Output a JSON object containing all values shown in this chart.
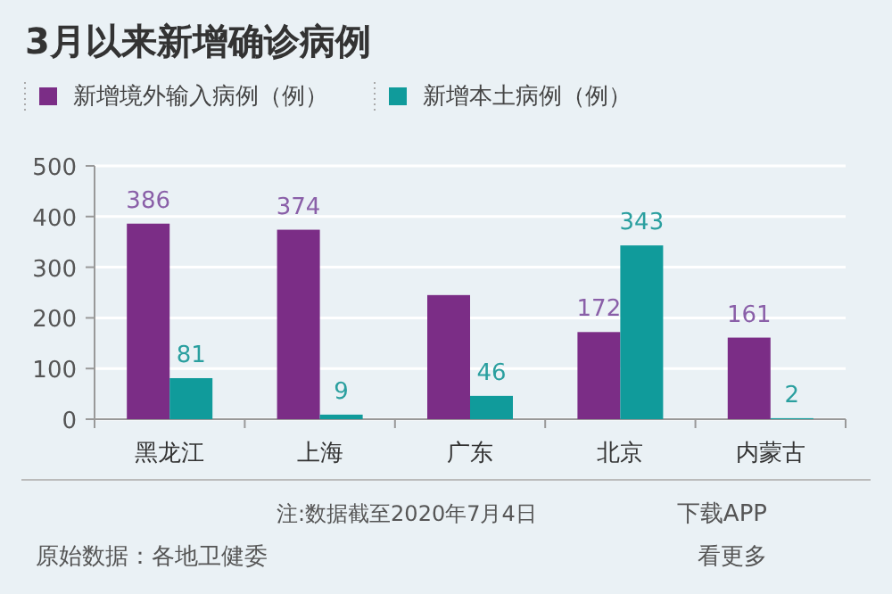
{
  "chart_data": {
    "type": "bar",
    "title": "3月以来新增确诊病例",
    "categories": [
      "黑龙江",
      "上海",
      "广东",
      "北京",
      "内蒙古"
    ],
    "series": [
      {
        "name": "新增境外输入病例（例）",
        "color": "#7b2d86",
        "values": [
          386,
          374,
          245,
          172,
          161
        ],
        "value_labels": [
          "386",
          "374",
          null,
          "172",
          "161"
        ]
      },
      {
        "name": "新增本土病例（例）",
        "color": "#109b9b",
        "values": [
          81,
          9,
          46,
          343,
          2
        ],
        "value_labels": [
          "81",
          "9",
          "46",
          "343",
          "2"
        ]
      }
    ],
    "ylim": [
      0,
      500
    ],
    "yticks": [
      0,
      100,
      200,
      300,
      400,
      500
    ],
    "grid": "y",
    "legend": "top left",
    "annotations": [
      "注:数据截至2020年7月4日",
      "原始数据：各地卫健委",
      "下载APP",
      "看更多"
    ]
  }
}
